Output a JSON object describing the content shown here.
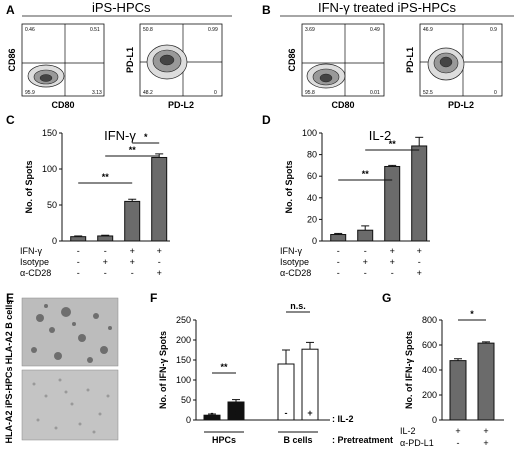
{
  "panels": {
    "A": {
      "letter": "A",
      "title": "iPS-HPCs",
      "plots": [
        {
          "ylabel": "CD86",
          "xlabel": "CD80",
          "q": [
            "0.46",
            "0.51",
            "95.9",
            "3.13"
          ]
        },
        {
          "ylabel": "PD-L1",
          "xlabel": "PD-L2",
          "q": [
            "50.8",
            "0.99",
            "48.2",
            "0"
          ]
        }
      ]
    },
    "B": {
      "letter": "B",
      "title": "IFN-γ treated iPS-HPCs",
      "plots": [
        {
          "ylabel": "CD86",
          "xlabel": "CD80",
          "q": [
            "3.69",
            "0.49",
            "95.8",
            "0.01"
          ]
        },
        {
          "ylabel": "PD-L1",
          "xlabel": "PD-L2",
          "q": [
            "46.9",
            "0.9",
            "52.5",
            "0"
          ]
        }
      ]
    },
    "E": {
      "letter": "E",
      "labels": [
        "HLA-A2 B cells",
        "HLA-A2 iPS-HPCs"
      ]
    }
  },
  "chart_data": [
    {
      "panel": "C",
      "type": "bar",
      "title": "IFN-γ",
      "ylabel": "No. of Spots",
      "ylim": [
        0,
        150
      ],
      "yticks": [
        "0",
        "50",
        "100",
        "150"
      ],
      "values": [
        6,
        7,
        55,
        116
      ],
      "errors": [
        1,
        1,
        3,
        5
      ],
      "row_labels": [
        "IFN-γ",
        "Isotype",
        "α-CD28"
      ],
      "rows": [
        [
          "-",
          "-",
          "+",
          "+"
        ],
        [
          "-",
          "+",
          "+",
          "-"
        ],
        [
          "-",
          "-",
          "-",
          "+"
        ]
      ],
      "sig": [
        {
          "from": 2,
          "to": 3,
          "label": "*"
        },
        {
          "from": 1,
          "to": 3,
          "label": "**"
        },
        {
          "from": 0,
          "to": 2,
          "label": "**"
        }
      ]
    },
    {
      "panel": "D",
      "type": "bar",
      "title": "IL-2",
      "ylabel": "No. of Spots",
      "ylim": [
        0,
        100
      ],
      "yticks": [
        "0",
        "20",
        "40",
        "60",
        "80",
        "100"
      ],
      "values": [
        6,
        10,
        69,
        88
      ],
      "errors": [
        1,
        4,
        1,
        8
      ],
      "row_labels": [
        "IFN-γ",
        "Isotype",
        "α-CD28"
      ],
      "rows": [
        [
          "-",
          "-",
          "+",
          "+"
        ],
        [
          "-",
          "+",
          "+",
          "-"
        ],
        [
          "-",
          "-",
          "-",
          "+"
        ]
      ],
      "sig": [
        {
          "from": 1,
          "to": 3,
          "label": "**"
        },
        {
          "from": 0,
          "to": 2,
          "label": "**"
        }
      ]
    },
    {
      "panel": "F",
      "type": "bar",
      "ylabel": "No. of IFN-γ Spots",
      "ylim": [
        0,
        250
      ],
      "yticks": [
        "0",
        "50",
        "100",
        "150",
        "200",
        "250"
      ],
      "values": [
        12,
        45,
        140,
        177
      ],
      "errors": [
        3,
        6,
        35,
        17
      ],
      "fills": [
        "#111111",
        "#111111",
        "#ffffff",
        "#ffffff"
      ],
      "il2": [
        "-",
        "+",
        "-",
        "+"
      ],
      "il2_label": ": IL-2",
      "groups": [
        "HPCs",
        "B cells"
      ],
      "group_label": ": Pretreatment",
      "sig": [
        {
          "from": 0,
          "to": 1,
          "label": "**"
        },
        {
          "from": 2,
          "to": 3,
          "label": "n.s."
        }
      ]
    },
    {
      "panel": "G",
      "type": "bar",
      "ylabel": "No. of IFN-γ Spots",
      "ylim": [
        0,
        800
      ],
      "yticks": [
        "0",
        "200",
        "400",
        "600",
        "800"
      ],
      "values": [
        475,
        615
      ],
      "errors": [
        15,
        10
      ],
      "row_labels": [
        "IL-2",
        "α-PD-L1"
      ],
      "rows": [
        [
          "+",
          "+"
        ],
        [
          "-",
          "+"
        ]
      ],
      "sig": [
        {
          "from": 0,
          "to": 1,
          "label": "*"
        }
      ]
    }
  ],
  "colors": {
    "bar": "#6b6b6b",
    "axis": "#111111",
    "photo": "#b9b9b9"
  }
}
